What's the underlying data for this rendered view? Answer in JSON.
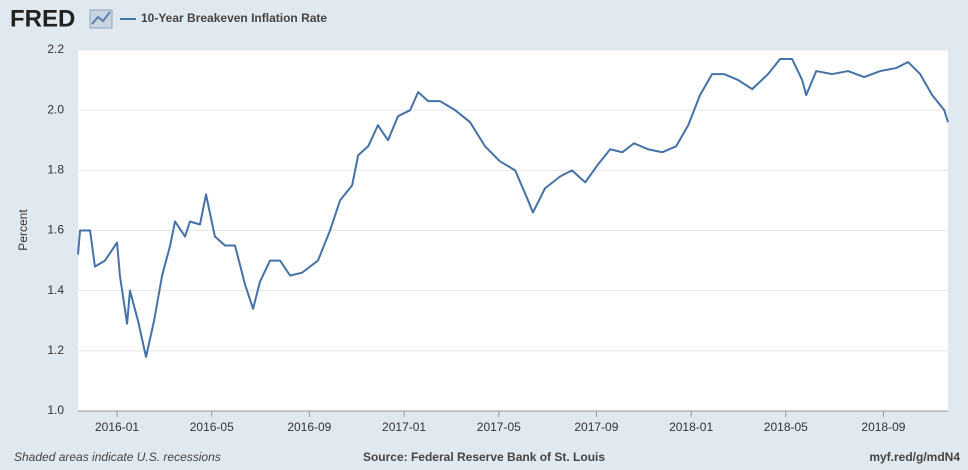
{
  "chart_data": {
    "type": "line",
    "logo": "FRED",
    "y_label": "Percent",
    "note": "Shaded areas indicate U.S. recessions",
    "source": "Source: Federal Reserve Bank of St. Louis",
    "url": "myf.red/g/mdN4",
    "grid": true,
    "x": [
      2015.864,
      2015.871,
      2015.906,
      2015.923,
      2015.958,
      2016.0,
      2016.01,
      2016.035,
      2016.045,
      2016.073,
      2016.101,
      2016.129,
      2016.157,
      2016.185,
      2016.202,
      2016.237,
      2016.254,
      2016.289,
      2016.31,
      2016.341,
      2016.376,
      2016.411,
      2016.446,
      2016.474,
      2016.498,
      2016.533,
      2016.568,
      2016.603,
      2016.645,
      2016.7,
      2016.742,
      2016.777,
      2016.819,
      2016.84,
      2016.875,
      2016.909,
      2016.944,
      2016.979,
      2017.021,
      2017.049,
      2017.084,
      2017.125,
      2017.178,
      2017.23,
      2017.282,
      2017.334,
      2017.387,
      2017.432,
      2017.449,
      2017.491,
      2017.544,
      2017.585,
      2017.631,
      2017.676,
      2017.718,
      2017.76,
      2017.801,
      2017.85,
      2017.899,
      2017.948,
      2017.99,
      2018.031,
      2018.073,
      2018.115,
      2018.164,
      2018.213,
      2018.268,
      2018.31,
      2018.352,
      2018.387,
      2018.401,
      2018.436,
      2018.491,
      2018.547,
      2018.603,
      2018.659,
      2018.714,
      2018.756,
      2018.798,
      2018.84,
      2018.882,
      2018.895
    ],
    "series": [
      {
        "name": "10-Year Breakeven Inflation Rate",
        "color": "#4572a7",
        "values": [
          1.52,
          1.6,
          1.6,
          1.48,
          1.5,
          1.56,
          1.45,
          1.29,
          1.4,
          1.3,
          1.18,
          1.3,
          1.45,
          1.55,
          1.63,
          1.58,
          1.63,
          1.62,
          1.72,
          1.58,
          1.55,
          1.55,
          1.42,
          1.34,
          1.43,
          1.5,
          1.5,
          1.45,
          1.46,
          1.5,
          1.6,
          1.7,
          1.75,
          1.85,
          1.88,
          1.95,
          1.9,
          1.98,
          2.0,
          2.06,
          2.03,
          2.03,
          2.0,
          1.96,
          1.88,
          1.83,
          1.8,
          1.7,
          1.66,
          1.74,
          1.78,
          1.8,
          1.76,
          1.82,
          1.87,
          1.86,
          1.89,
          1.87,
          1.86,
          1.88,
          1.95,
          2.05,
          2.12,
          2.12,
          2.1,
          2.07,
          2.12,
          2.17,
          2.17,
          2.1,
          2.05,
          2.13,
          2.12,
          2.13,
          2.11,
          2.13,
          2.14,
          2.16,
          2.12,
          2.05,
          2.0,
          1.96
        ]
      }
    ],
    "xlim": [
      2015.864,
      2018.895
    ],
    "xticks": [
      {
        "value": 2016.0,
        "label": "2016-01"
      },
      {
        "value": 2016.33,
        "label": "2016-05"
      },
      {
        "value": 2016.67,
        "label": "2016-09"
      },
      {
        "value": 2017.0,
        "label": "2017-01"
      },
      {
        "value": 2017.33,
        "label": "2017-05"
      },
      {
        "value": 2017.67,
        "label": "2017-09"
      },
      {
        "value": 2018.0,
        "label": "2018-01"
      },
      {
        "value": 2018.33,
        "label": "2018-05"
      },
      {
        "value": 2018.67,
        "label": "2018-09"
      }
    ],
    "ylim": [
      1.0,
      2.2
    ],
    "yticks": [
      {
        "value": 1.0,
        "label": "1.0"
      },
      1.2,
      1.4,
      1.6,
      1.8,
      {
        "value": 2.0,
        "label": "2.0"
      },
      2.2
    ]
  }
}
